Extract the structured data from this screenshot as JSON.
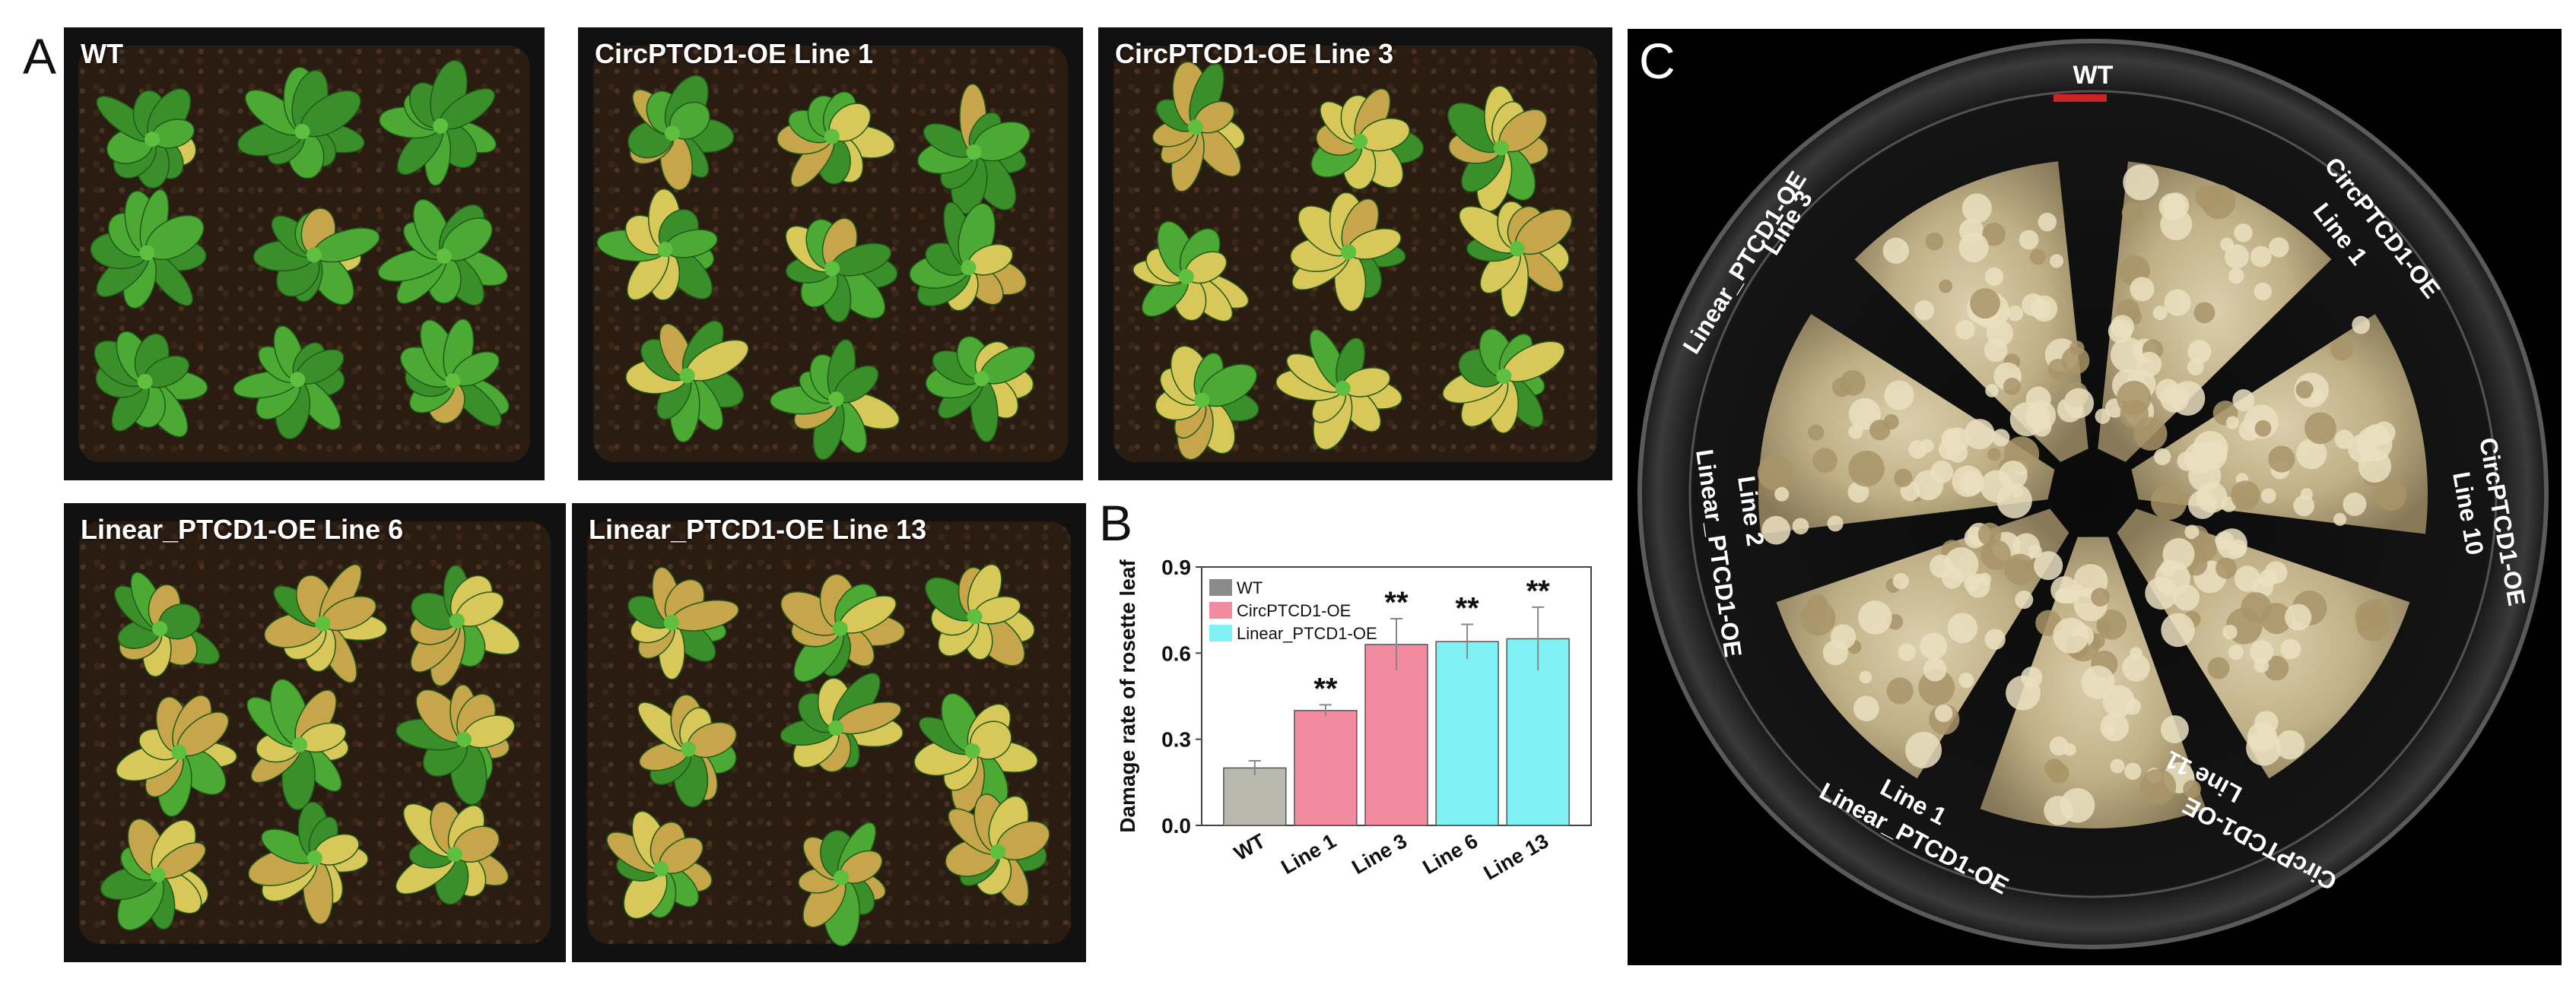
{
  "panels": {
    "a_letter": "A",
    "b_letter": "B",
    "c_letter": "C"
  },
  "photos": [
    {
      "label": "WT",
      "severity": 0.05
    },
    {
      "label": "CircPTCD1-OE Line 1",
      "severity": 0.35
    },
    {
      "label": "CircPTCD1-OE Line 3",
      "severity": 0.6
    },
    {
      "label": "Linear_PTCD1-OE Line 6",
      "severity": 0.55
    },
    {
      "label": "Linear_PTCD1-OE Line 13",
      "severity": 0.6
    }
  ],
  "chart_data": {
    "type": "bar",
    "categories": [
      "WT",
      "Line 1",
      "Line 3",
      "Line 6",
      "Line 13"
    ],
    "values": [
      0.2,
      0.4,
      0.63,
      0.64,
      0.65
    ],
    "errors": [
      0.025,
      0.02,
      0.09,
      0.06,
      0.11
    ],
    "significance": [
      "",
      "**",
      "**",
      "**",
      "**"
    ],
    "bar_colors": [
      "#b9b9ad",
      "#f28aa0",
      "#f28aa0",
      "#7ff0f4",
      "#7ff0f4"
    ],
    "ylabel": "Damage rate of rosette leaf",
    "ylim": [
      0,
      0.9
    ],
    "yticks": [
      "0.0",
      "0.3",
      "0.6",
      "0.9"
    ],
    "legend": [
      {
        "name": "WT",
        "color": "#8a8a8a"
      },
      {
        "name": "CircPTCD1-OE",
        "color": "#f28aa0"
      },
      {
        "name": "Linear_PTCD1-OE",
        "color": "#7ff0f4"
      }
    ],
    "legend_position": "top-left"
  },
  "plate": {
    "labels": {
      "wt": "WT",
      "circ_line1_a": "CircPTCD1-OE",
      "circ_line1_b": "Line 1",
      "circ_line10_a": "CircPTCD1-OE",
      "circ_line10_b": "Line 10",
      "circ_line11": "CircPTCD1-OE",
      "circ_line11_b": "Line 11",
      "lin_line1_a": "Line 1",
      "lin_line1_b": "Linear_PTCD1-OE",
      "lin_line2_a": "Line 2",
      "lin_line2_b": "Linear_PTCD1-OE",
      "lin_line3_a": "Linear_PTCD1-OE",
      "lin_line3_b": "Line 3"
    }
  }
}
